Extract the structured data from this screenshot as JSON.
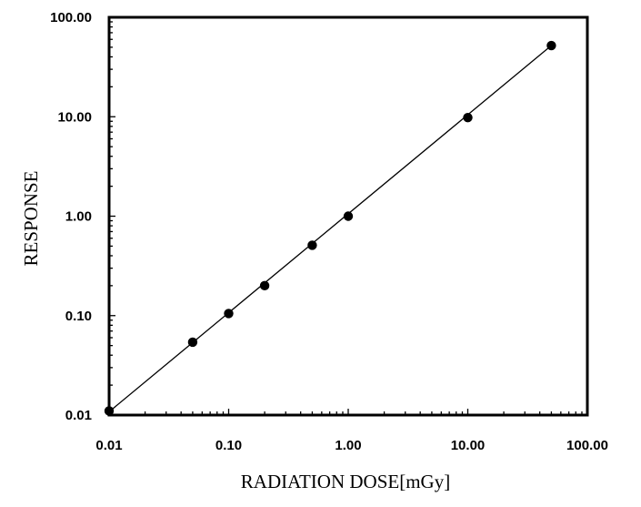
{
  "chart_data": {
    "type": "scatter",
    "xlabel": "RADIATION DOSE[mGy]",
    "ylabel": "RESPONSE",
    "x_scale": "log",
    "y_scale": "log",
    "xlim": [
      0.01,
      100
    ],
    "ylim": [
      0.01,
      100
    ],
    "x_ticks": [
      "0.01",
      "0.10",
      "1.00",
      "10.00",
      "100.00"
    ],
    "y_ticks": [
      "0.01",
      "0.10",
      "1.00",
      "10.00",
      "100.00"
    ],
    "grid": false,
    "legend": "none",
    "points": [
      {
        "x": 0.01,
        "y": 0.011
      },
      {
        "x": 0.05,
        "y": 0.054
      },
      {
        "x": 0.1,
        "y": 0.105
      },
      {
        "x": 0.2,
        "y": 0.2
      },
      {
        "x": 0.5,
        "y": 0.51
      },
      {
        "x": 1.0,
        "y": 1.0
      },
      {
        "x": 10.0,
        "y": 9.8
      },
      {
        "x": 50.0,
        "y": 52.0
      }
    ],
    "fit_line": {
      "from": [
        0.01,
        0.0108
      ],
      "to": [
        50.0,
        52.0
      ]
    },
    "colors": {
      "marker": "#000000",
      "line": "#000000",
      "frame": "#000000"
    }
  }
}
